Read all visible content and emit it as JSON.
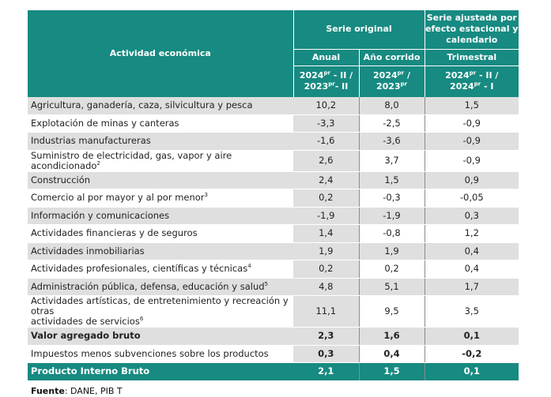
{
  "header": {
    "activity": "Actividad económica",
    "original": "Serie original",
    "adjusted_line1": "Serie ajustada por",
    "adjusted_line2": "efecto estacional y",
    "adjusted_line3": "calendario",
    "annual": "Anual",
    "ytd": "Año corrido",
    "quarterly": "Trimestral",
    "annual_period_a": "2024",
    "annual_period_a_sup": "pr",
    "annual_period_a_tail": " - II /",
    "annual_period_b": "2023",
    "annual_period_b_sup": "pr",
    "annual_period_b_tail": "- II",
    "ytd_period_a": "2024",
    "ytd_period_a_sup": "pr",
    "ytd_period_a_tail": " /",
    "ytd_period_b": "2023",
    "ytd_period_b_sup": "pr",
    "q_period_a": "2024",
    "q_period_a_sup": "pr",
    "q_period_a_tail": " - II /",
    "q_period_b": "2024",
    "q_period_b_sup": "pr",
    "q_period_b_tail": " - I"
  },
  "rows": [
    {
      "label": "Agricultura, ganadería, caza, silvicultura y pesca",
      "sup": "",
      "annual": "10,2",
      "ytd": "8,0",
      "quarterly": "1,5"
    },
    {
      "label": "Explotación de minas y canteras",
      "sup": "",
      "annual": "-3,3",
      "ytd": "-2,5",
      "quarterly": "-0,9"
    },
    {
      "label": "Industrias manufactureras",
      "sup": "",
      "annual": "-1,6",
      "ytd": "-3,6",
      "quarterly": "-0,9"
    },
    {
      "label": "Suministro de electricidad, gas, vapor y aire acondicionado",
      "sup": "2",
      "annual": "2,6",
      "ytd": "3,7",
      "quarterly": "-0,9"
    },
    {
      "label": "Construcción",
      "sup": "",
      "annual": "2,4",
      "ytd": "1,5",
      "quarterly": "0,9"
    },
    {
      "label": "Comercio al por mayor y al por menor",
      "sup": "3",
      "annual": "0,2",
      "ytd": "-0,3",
      "quarterly": "-0,05"
    },
    {
      "label": "Información y comunicaciones",
      "sup": "",
      "annual": "-1,9",
      "ytd": "-1,9",
      "quarterly": "0,3"
    },
    {
      "label": "Actividades financieras y de seguros",
      "sup": "",
      "annual": "1,4",
      "ytd": "-0,8",
      "quarterly": "1,2"
    },
    {
      "label": "Actividades inmobiliarias",
      "sup": "",
      "annual": "1,9",
      "ytd": "1,9",
      "quarterly": "0,4"
    },
    {
      "label": "Actividades profesionales, científicas y técnicas",
      "sup": "4",
      "annual": "0,2",
      "ytd": "0,2",
      "quarterly": "0,4"
    },
    {
      "label": "Administración pública, defensa, educación y salud",
      "sup": "5",
      "annual": "4,8",
      "ytd": "5,1",
      "quarterly": "1,7"
    },
    {
      "label_line1": "Actividades artísticas, de entretenimiento y recreación y otras",
      "label_line2": "actividades de servicios",
      "sup": "6",
      "annual": "11,1",
      "ytd": "9,5",
      "quarterly": "3,5"
    },
    {
      "label": "Valor agregado bruto",
      "sup": "",
      "annual": "2,3",
      "ytd": "1,6",
      "quarterly": "0,1"
    },
    {
      "label": "Impuestos menos subvenciones sobre los productos",
      "sup": "",
      "annual": "0,3",
      "ytd": "0,4",
      "quarterly": "-0,2"
    },
    {
      "label": "Producto Interno Bruto",
      "sup": "",
      "annual": "2,1",
      "ytd": "1,5",
      "quarterly": "0,1"
    }
  ],
  "footer": {
    "source_label": "Fuente",
    "source_text": ": DANE, PIB  T"
  },
  "colors": {
    "header_teal": "#178a81",
    "row_gray": "#dfdfdf"
  }
}
